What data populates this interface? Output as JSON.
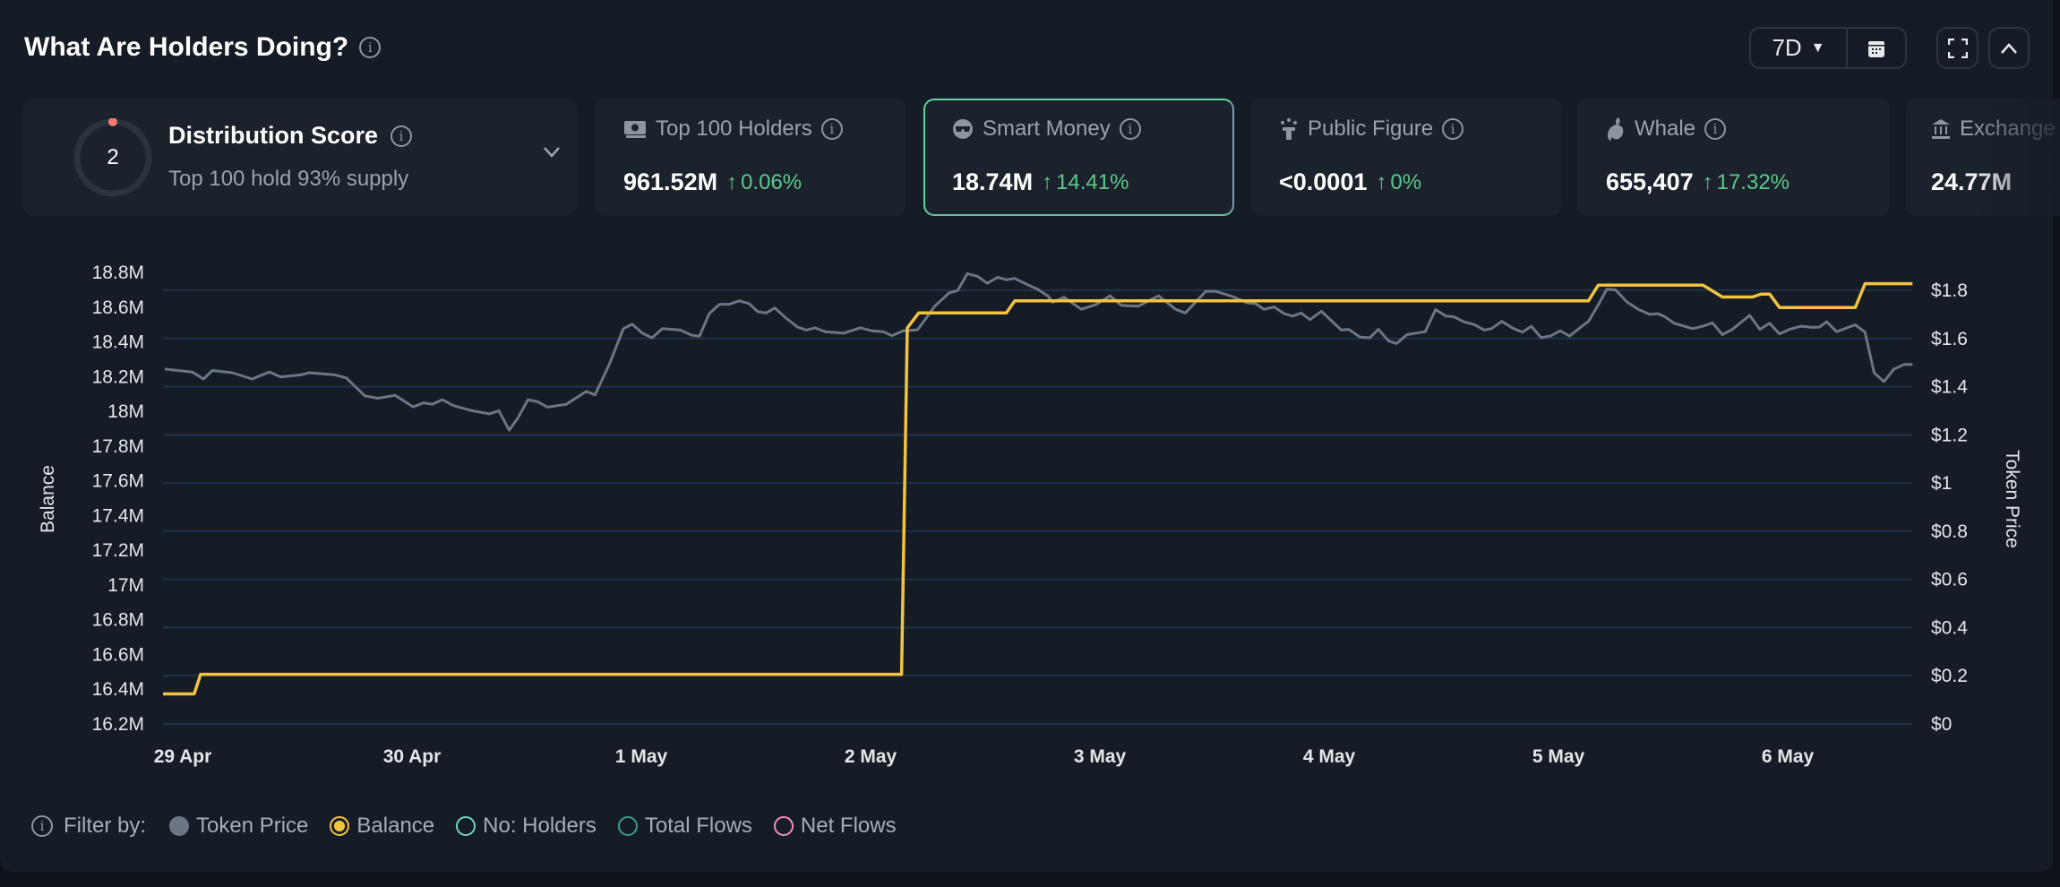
{
  "header": {
    "title": "What Are Holders Doing?",
    "range": "7D"
  },
  "cards": {
    "distribution": {
      "name": "Distribution Score",
      "score": "2",
      "subtitle": "Top 100 hold 93% supply"
    },
    "items": [
      {
        "label": "Top 100 Holders",
        "value": "961.52M",
        "change": "0.06%",
        "icon": "money-icon"
      },
      {
        "label": "Smart Money",
        "value": "18.74M",
        "change": "14.41%",
        "icon": "sunglasses-icon",
        "selected": true
      },
      {
        "label": "Public Figure",
        "value": "<0.0001",
        "change": "0%",
        "icon": "public-figure-icon"
      },
      {
        "label": "Whale",
        "value": "655,407",
        "change": "17.32%",
        "icon": "whale-icon"
      },
      {
        "label": "Exchange",
        "value": "24.77M",
        "icon": "bank-icon"
      }
    ]
  },
  "colors": {
    "price": "#6b7684",
    "balance": "#f2c241",
    "grid": "#1f3249",
    "up": "#5cc98a",
    "ring_dot": "#f07a6f"
  },
  "legend": {
    "label": "Filter by:",
    "items": [
      {
        "label": "Token Price",
        "color": "#6b7684",
        "state": "filled"
      },
      {
        "label": "Balance",
        "color": "#f2c241",
        "state": "selected"
      },
      {
        "label": "No: Holders",
        "color": "#6fd6c9",
        "state": "off"
      },
      {
        "label": "Total Flows",
        "color": "#3d9a92",
        "state": "off"
      },
      {
        "label": "Net Flows",
        "color": "#ef8fb8",
        "state": "off"
      }
    ]
  },
  "chart_data": {
    "type": "line",
    "ylabel": "Balance",
    "y2label": "Token Price",
    "ylim": [
      16.2,
      18.8
    ],
    "y2lim": [
      0,
      1.8
    ],
    "yticks": [
      "18.8M",
      "18.6M",
      "18.4M",
      "18.2M",
      "18M",
      "17.8M",
      "17.6M",
      "17.4M",
      "17.2M",
      "17M",
      "16.8M",
      "16.6M",
      "16.4M",
      "16.2M"
    ],
    "y2ticks": [
      "$1.8",
      "$1.6",
      "$1.4",
      "$1.2",
      "$1",
      "$0.8",
      "$0.6",
      "$0.4",
      "$0.2",
      "$0"
    ],
    "xticks": [
      "29 Apr",
      "30 Apr",
      "1 May",
      "2 May",
      "3 May",
      "4 May",
      "5 May",
      "6 May"
    ],
    "x_unit": "days since 29 Apr",
    "series": [
      {
        "name": "Balance",
        "axis": "left",
        "unit": "M",
        "points": [
          [
            -0.086,
            16.373
          ],
          [
            0.05,
            16.373
          ],
          [
            0.078,
            16.486
          ],
          [
            3.135,
            16.486
          ],
          [
            3.16,
            18.48
          ],
          [
            3.21,
            18.567
          ],
          [
            3.592,
            18.567
          ],
          [
            3.629,
            18.636
          ],
          [
            6.131,
            18.636
          ],
          [
            6.174,
            18.727
          ],
          [
            6.63,
            18.727
          ],
          [
            6.715,
            18.658
          ],
          [
            6.846,
            18.658
          ],
          [
            6.884,
            18.675
          ],
          [
            6.921,
            18.675
          ],
          [
            6.964,
            18.598
          ],
          [
            7.295,
            18.598
          ],
          [
            7.337,
            18.735
          ],
          [
            7.544,
            18.735
          ]
        ]
      },
      {
        "name": "Token Price",
        "axis": "right",
        "unit": "$",
        "points": [
          [
            -0.078,
            1.473
          ],
          [
            0.041,
            1.461
          ],
          [
            0.091,
            1.432
          ],
          [
            0.129,
            1.467
          ],
          [
            0.216,
            1.458
          ],
          [
            0.303,
            1.432
          ],
          [
            0.378,
            1.461
          ],
          [
            0.428,
            1.44
          ],
          [
            0.515,
            1.449
          ],
          [
            0.552,
            1.458
          ],
          [
            0.664,
            1.449
          ],
          [
            0.714,
            1.436
          ],
          [
            0.794,
            1.362
          ],
          [
            0.851,
            1.352
          ],
          [
            0.926,
            1.364
          ],
          [
            1.005,
            1.316
          ],
          [
            1.05,
            1.333
          ],
          [
            1.088,
            1.327
          ],
          [
            1.132,
            1.346
          ],
          [
            1.182,
            1.321
          ],
          [
            1.262,
            1.3
          ],
          [
            1.337,
            1.287
          ],
          [
            1.379,
            1.3
          ],
          [
            1.424,
            1.219
          ],
          [
            1.461,
            1.269
          ],
          [
            1.506,
            1.346
          ],
          [
            1.549,
            1.337
          ],
          [
            1.591,
            1.315
          ],
          [
            1.673,
            1.327
          ],
          [
            1.76,
            1.38
          ],
          [
            1.798,
            1.366
          ],
          [
            1.86,
            1.492
          ],
          [
            1.922,
            1.641
          ],
          [
            1.96,
            1.659
          ],
          [
            2.005,
            1.622
          ],
          [
            2.047,
            1.603
          ],
          [
            2.092,
            1.641
          ],
          [
            2.171,
            1.635
          ],
          [
            2.221,
            1.613
          ],
          [
            2.254,
            1.61
          ],
          [
            2.296,
            1.703
          ],
          [
            2.341,
            1.742
          ],
          [
            2.383,
            1.742
          ],
          [
            2.428,
            1.756
          ],
          [
            2.47,
            1.745
          ],
          [
            2.508,
            1.711
          ],
          [
            2.545,
            1.706
          ],
          [
            2.582,
            1.727
          ],
          [
            2.632,
            1.684
          ],
          [
            2.682,
            1.647
          ],
          [
            2.72,
            1.635
          ],
          [
            2.757,
            1.644
          ],
          [
            2.802,
            1.628
          ],
          [
            2.881,
            1.622
          ],
          [
            2.956,
            1.644
          ],
          [
            3.006,
            1.632
          ],
          [
            3.056,
            1.628
          ],
          [
            3.093,
            1.612
          ],
          [
            3.143,
            1.632
          ],
          [
            3.205,
            1.636
          ],
          [
            3.28,
            1.734
          ],
          [
            3.342,
            1.789
          ],
          [
            3.38,
            1.799
          ],
          [
            3.422,
            1.869
          ],
          [
            3.467,
            1.858
          ],
          [
            3.509,
            1.829
          ],
          [
            3.554,
            1.854
          ],
          [
            3.592,
            1.844
          ],
          [
            3.629,
            1.849
          ],
          [
            3.679,
            1.826
          ],
          [
            3.729,
            1.804
          ],
          [
            3.773,
            1.777
          ],
          [
            3.795,
            1.75
          ],
          [
            3.844,
            1.771
          ],
          [
            3.919,
            1.721
          ],
          [
            3.982,
            1.74
          ],
          [
            4.044,
            1.777
          ],
          [
            4.094,
            1.737
          ],
          [
            4.168,
            1.734
          ],
          [
            4.256,
            1.777
          ],
          [
            4.33,
            1.721
          ],
          [
            4.373,
            1.706
          ],
          [
            4.462,
            1.796
          ],
          [
            4.505,
            1.796
          ],
          [
            4.579,
            1.774
          ],
          [
            4.642,
            1.748
          ],
          [
            4.679,
            1.745
          ],
          [
            4.716,
            1.721
          ],
          [
            4.761,
            1.731
          ],
          [
            4.804,
            1.703
          ],
          [
            4.841,
            1.693
          ],
          [
            4.878,
            1.706
          ],
          [
            4.916,
            1.678
          ],
          [
            4.966,
            1.713
          ],
          [
            5.053,
            1.635
          ],
          [
            5.085,
            1.638
          ],
          [
            5.135,
            1.606
          ],
          [
            5.177,
            1.603
          ],
          [
            5.215,
            1.638
          ],
          [
            5.26,
            1.589
          ],
          [
            5.294,
            1.579
          ],
          [
            5.339,
            1.616
          ],
          [
            5.419,
            1.628
          ],
          [
            5.464,
            1.72
          ],
          [
            5.509,
            1.693
          ],
          [
            5.544,
            1.69
          ],
          [
            5.588,
            1.669
          ],
          [
            5.633,
            1.658
          ],
          [
            5.676,
            1.635
          ],
          [
            5.708,
            1.641
          ],
          [
            5.753,
            1.671
          ],
          [
            5.8,
            1.643
          ],
          [
            5.843,
            1.626
          ],
          [
            5.882,
            1.651
          ],
          [
            5.925,
            1.603
          ],
          [
            5.967,
            1.611
          ],
          [
            6.007,
            1.632
          ],
          [
            6.049,
            1.61
          ],
          [
            6.092,
            1.643
          ],
          [
            6.131,
            1.671
          ],
          [
            6.174,
            1.74
          ],
          [
            6.211,
            1.804
          ],
          [
            6.249,
            1.802
          ],
          [
            6.298,
            1.752
          ],
          [
            6.348,
            1.721
          ],
          [
            6.398,
            1.7
          ],
          [
            6.435,
            1.703
          ],
          [
            6.465,
            1.69
          ],
          [
            6.505,
            1.663
          ],
          [
            6.548,
            1.651
          ],
          [
            6.585,
            1.641
          ],
          [
            6.63,
            1.651
          ],
          [
            6.672,
            1.665
          ],
          [
            6.715,
            1.616
          ],
          [
            6.759,
            1.638
          ],
          [
            6.834,
            1.696
          ],
          [
            6.879,
            1.638
          ],
          [
            6.921,
            1.663
          ],
          [
            6.964,
            1.619
          ],
          [
            7.008,
            1.638
          ],
          [
            7.058,
            1.651
          ],
          [
            7.108,
            1.646
          ],
          [
            7.138,
            1.647
          ],
          [
            7.17,
            1.669
          ],
          [
            7.213,
            1.628
          ],
          [
            7.295,
            1.657
          ],
          [
            7.337,
            1.626
          ],
          [
            7.377,
            1.457
          ],
          [
            7.42,
            1.421
          ],
          [
            7.462,
            1.472
          ],
          [
            7.507,
            1.492
          ],
          [
            7.544,
            1.492
          ]
        ]
      }
    ],
    "grid": true,
    "legend_position": "bottom-left"
  }
}
